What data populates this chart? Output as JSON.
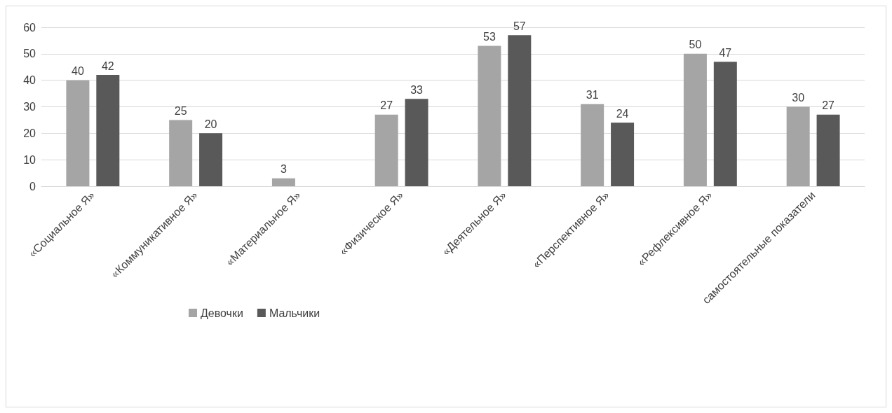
{
  "chart_data": {
    "type": "bar",
    "categories": [
      "«Социальное Я»",
      "«Коммуникативное Я»",
      "«Материальное Я»",
      "«Физическое Я»",
      "«Деятельное Я»",
      "«Перспективное Я»",
      "«Рефлексивное Я»",
      "самостоятельные показатели"
    ],
    "series": [
      {
        "name": "Девочки",
        "color": "#a5a5a5",
        "values": [
          40,
          25,
          3,
          27,
          53,
          31,
          50,
          30
        ]
      },
      {
        "name": "Мальчики",
        "color": "#595959",
        "values": [
          42,
          20,
          null,
          33,
          57,
          24,
          47,
          27
        ]
      }
    ],
    "ylim": [
      0,
      60
    ],
    "yticks": [
      0,
      10,
      20,
      30,
      40,
      50,
      60
    ],
    "grid": "y",
    "legend": "bottom",
    "data_labels": true
  }
}
